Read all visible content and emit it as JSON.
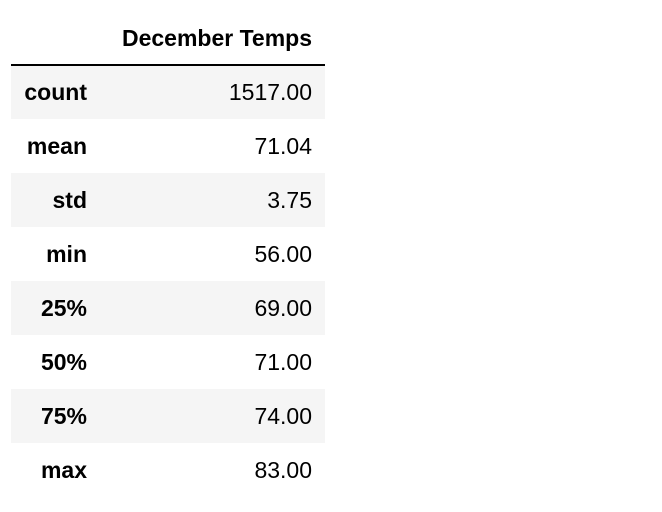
{
  "table": {
    "column_header": "December Temps",
    "rows": [
      {
        "label": "count",
        "value": "1517.00"
      },
      {
        "label": "mean",
        "value": "71.04"
      },
      {
        "label": "std",
        "value": "3.75"
      },
      {
        "label": "min",
        "value": "56.00"
      },
      {
        "label": "25%",
        "value": "69.00"
      },
      {
        "label": "50%",
        "value": "71.00"
      },
      {
        "label": "75%",
        "value": "74.00"
      },
      {
        "label": "max",
        "value": "83.00"
      }
    ]
  },
  "colors": {
    "stripe": "#f5f5f5",
    "background": "#ffffff",
    "text": "#000000"
  }
}
